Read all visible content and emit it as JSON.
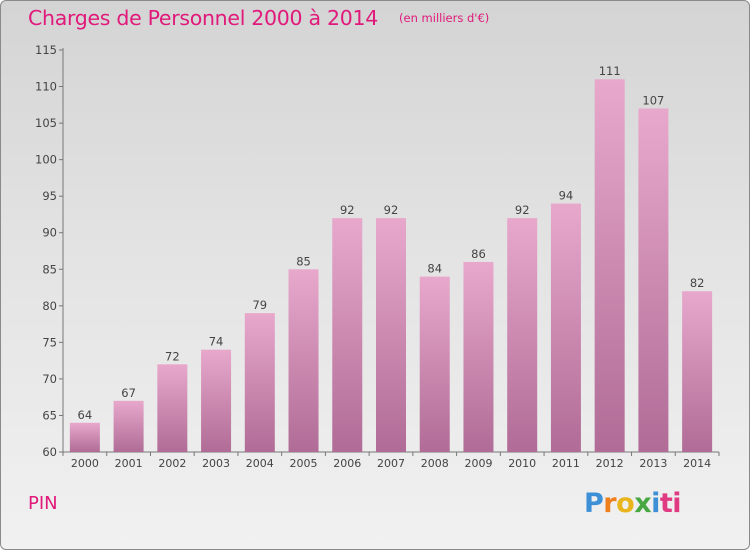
{
  "header": {
    "title": "Charges de Personnel 2000 à 2014",
    "subtitle": "(en milliers d'€)"
  },
  "footer": {
    "commune": "PIN",
    "logo_text": "Proxiti",
    "logo_letters": [
      "P",
      "r",
      "o",
      "x",
      "i",
      "ti"
    ]
  },
  "colors": {
    "bar_top": "#e8a8cc",
    "bar_bottom": "#b06c96",
    "accent": "#e0197a"
  },
  "chart_data": {
    "type": "bar",
    "title": "Charges de Personnel 2000 à 2014",
    "subtitle": "(en milliers d'€)",
    "xlabel": "",
    "ylabel": "",
    "categories": [
      "2000",
      "2001",
      "2002",
      "2003",
      "2004",
      "2005",
      "2006",
      "2007",
      "2008",
      "2009",
      "2010",
      "2011",
      "2012",
      "2013",
      "2014"
    ],
    "values": [
      64,
      67,
      72,
      74,
      79,
      85,
      92,
      92,
      84,
      86,
      92,
      94,
      111,
      107,
      82
    ],
    "ylim": [
      60,
      115
    ],
    "yticks": [
      60,
      65,
      70,
      75,
      80,
      85,
      90,
      95,
      100,
      105,
      110,
      115
    ],
    "grid": false,
    "legend": "none",
    "data_labels": true
  }
}
